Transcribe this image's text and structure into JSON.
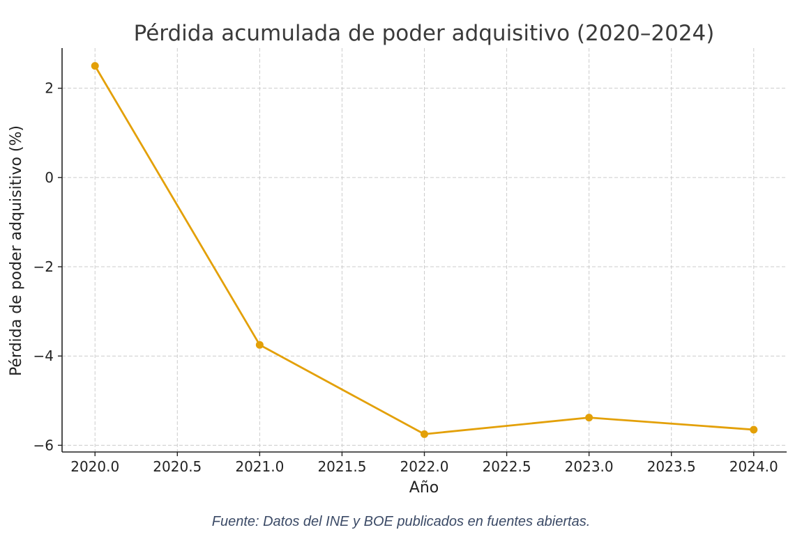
{
  "chart_data": {
    "type": "line",
    "title": "Pérdida acumulada de poder adquisitivo (2020–2024)",
    "xlabel": "Año",
    "ylabel": "Pérdida de poder adquisitivo (%)",
    "x": [
      2020,
      2021,
      2022,
      2023,
      2024
    ],
    "series": [
      {
        "values": [
          2.5,
          -3.75,
          -5.75,
          -5.38,
          -5.65
        ],
        "color": "#e3a008"
      }
    ],
    "xlim": [
      2019.8,
      2024.2
    ],
    "ylim": [
      -6.15,
      2.9
    ],
    "xticks": [
      2020.0,
      2020.5,
      2021.0,
      2021.5,
      2022.0,
      2022.5,
      2023.0,
      2023.5,
      2024.0
    ],
    "xtick_labels": [
      "2020.0",
      "2020.5",
      "2021.0",
      "2021.5",
      "2022.0",
      "2022.5",
      "2023.0",
      "2023.5",
      "2024.0"
    ],
    "yticks": [
      -6,
      -4,
      -2,
      0,
      2
    ],
    "ytick_labels": [
      "−6",
      "−4",
      "−2",
      "0",
      "2"
    ],
    "grid": true,
    "grid_color": "#cccccc",
    "axis_color": "#222222"
  },
  "footer": {
    "source": "Fuente: Datos del INE y BOE publicados en fuentes abiertas."
  }
}
